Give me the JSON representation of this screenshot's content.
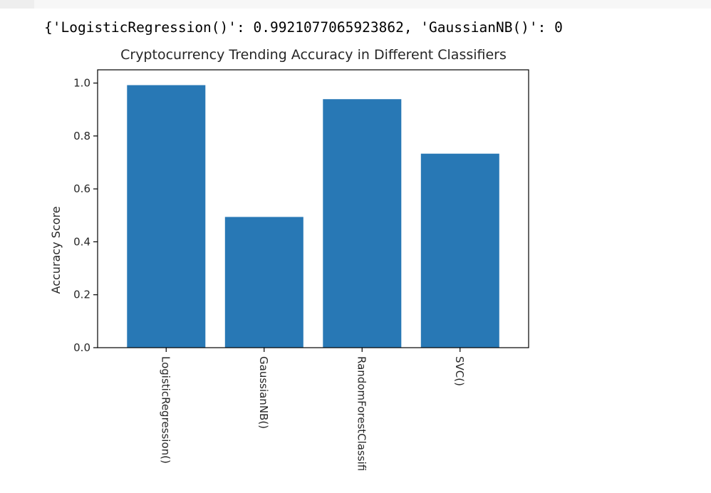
{
  "output": {
    "text": "{'LogisticRegression()': 0.9921077065923862, 'GaussianNB()': 0"
  },
  "colors": {
    "bar": "#2878b5",
    "axis": "#000000",
    "text": "#262626",
    "background": "#ffffff"
  },
  "chart_data": {
    "type": "bar",
    "title": "Cryptocurrency Trending Accuracy in Different Classifiers",
    "xlabel": "",
    "ylabel": "Accuracy Score",
    "categories": [
      "LogisticRegression()",
      "GaussianNB()",
      "RandomForestClassifi",
      "SVC()"
    ],
    "values": [
      0.992,
      0.494,
      0.939,
      0.733
    ],
    "ylim": [
      0,
      1.05
    ],
    "yticks": [
      0.0,
      0.2,
      0.4,
      0.6,
      0.8,
      1.0
    ],
    "ytick_labels": [
      "0.0",
      "0.2",
      "0.4",
      "0.6",
      "0.8",
      "1.0"
    ],
    "grid": false,
    "legend": "none"
  }
}
